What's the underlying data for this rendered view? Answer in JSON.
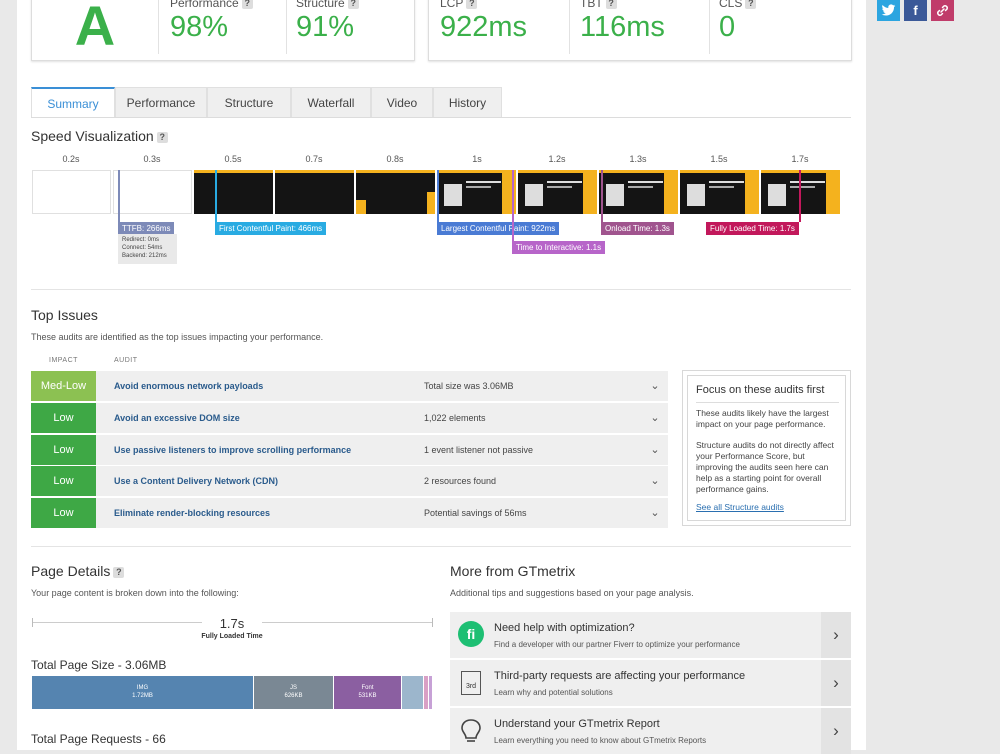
{
  "grade": {
    "letter": "A"
  },
  "scores": {
    "performance": {
      "label": "Performance",
      "value": "98%"
    },
    "structure": {
      "label": "Structure",
      "value": "91%"
    }
  },
  "web_vitals": {
    "lcp": {
      "label": "LCP",
      "value": "922ms"
    },
    "tbt": {
      "label": "TBT",
      "value": "116ms"
    },
    "cls": {
      "label": "CLS",
      "value": "0"
    }
  },
  "tabs": [
    "Summary",
    "Performance",
    "Structure",
    "Waterfall",
    "Video",
    "History"
  ],
  "speed_visualization": {
    "title": "Speed Visualization",
    "times": [
      "0.2s",
      "0.3s",
      "0.5s",
      "0.7s",
      "0.8s",
      "1s",
      "1.2s",
      "1.3s",
      "1.5s",
      "1.7s"
    ],
    "markers": {
      "ttfb": "TTFB: 266ms",
      "ttfb_detail": [
        "Redirect: 0ms",
        "Connect: 54ms",
        "Backend: 212ms"
      ],
      "fcp": "First Contentful Paint: 466ms",
      "lcp": "Largest Contentful Paint: 922ms",
      "tti": "Time to Interactive: 1.1s",
      "onload": "Onload Time: 1.3s",
      "fully_loaded": "Fully Loaded Time: 1.7s"
    }
  },
  "top_issues": {
    "title": "Top Issues",
    "subtitle": "These audits are identified as the top issues impacting your performance.",
    "col_impact": "IMPACT",
    "col_audit": "AUDIT",
    "rows": [
      {
        "impact": "Med-Low",
        "color": "#8cc152",
        "audit": "Avoid enormous network payloads",
        "detail": "Total size was 3.06MB"
      },
      {
        "impact": "Low",
        "color": "#3ea845",
        "audit": "Avoid an excessive DOM size",
        "detail": "1,022 elements"
      },
      {
        "impact": "Low",
        "color": "#3ea845",
        "audit": "Use passive listeners to improve scrolling performance",
        "detail": "1 event listener not passive"
      },
      {
        "impact": "Low",
        "color": "#3ea845",
        "audit": "Use a Content Delivery Network (CDN)",
        "detail": "2 resources found"
      },
      {
        "impact": "Low",
        "color": "#3ea845",
        "audit": "Eliminate render-blocking resources",
        "detail": "Potential savings of 56ms"
      }
    ],
    "focus": {
      "title": "Focus on these audits first",
      "p1": "These audits likely have the largest impact on your page performance.",
      "p2": "Structure audits do not directly affect your Performance Score, but improving the audits seen here can help as a starting point for overall performance gains.",
      "link": "See all Structure audits"
    }
  },
  "page_details": {
    "title": "Page Details",
    "subtitle": "Your page content is broken down into the following:",
    "fully_loaded_value": "1.7s",
    "fully_loaded_label": "Fully Loaded Time",
    "total_size_title": "Total Page Size - 3.06MB",
    "segments": [
      {
        "type": "IMG",
        "size": "1.72MB",
        "color": "#5584b0"
      },
      {
        "type": "JS",
        "size": "626KB",
        "color": "#7a8894"
      },
      {
        "type": "Font",
        "size": "531KB",
        "color": "#8b5fa1"
      },
      {
        "type": "",
        "size": "",
        "color": "#9cb6cc"
      },
      {
        "type": "",
        "size": "",
        "color": "#d9a0c5"
      }
    ],
    "total_requests_title": "Total Page Requests - 66"
  },
  "more": {
    "title": "More from GTmetrix",
    "subtitle": "Additional tips and suggestions based on your page analysis.",
    "items": [
      {
        "title": "Need help with optimization?",
        "desc": "Find a developer with our partner Fiverr to optimize your performance",
        "icon": "fiverr-icon",
        "glyph": "fi"
      },
      {
        "title": "Third-party requests are affecting your performance",
        "desc": "Learn why and potential solutions",
        "icon": "third-party-icon",
        "glyph": "3rd"
      },
      {
        "title": "Understand your GTmetrix Report",
        "desc": "Learn everything you need to know about GTmetrix Reports",
        "icon": "lightbulb-icon",
        "glyph": ""
      }
    ]
  },
  "social": {
    "twitter": "twitter-icon",
    "facebook": "f",
    "link": "link-icon"
  }
}
